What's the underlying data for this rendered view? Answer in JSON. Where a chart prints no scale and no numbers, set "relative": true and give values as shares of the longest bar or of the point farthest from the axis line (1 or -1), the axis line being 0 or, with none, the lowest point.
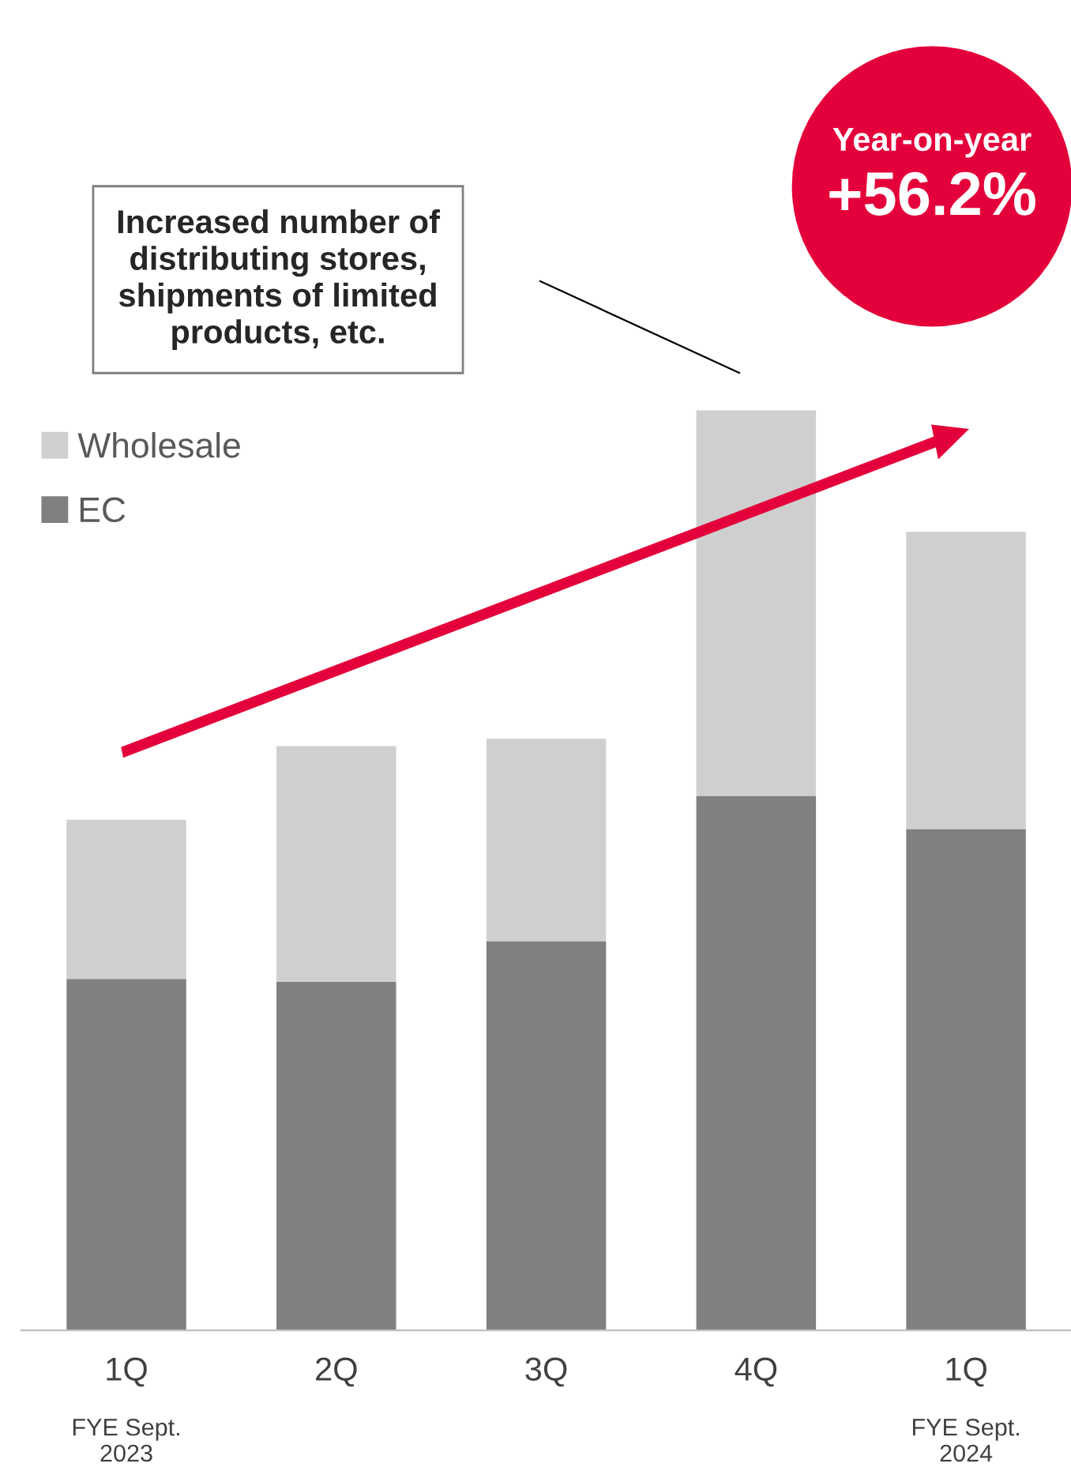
{
  "chart_data": {
    "type": "bar",
    "stacked": true,
    "relative": true,
    "legend": "top left",
    "grid": false,
    "categories": [
      "1Q\nFYE Sept.\n2023",
      "2Q",
      "3Q",
      "4Q",
      "1Q\nFYE Sept.\n2024"
    ],
    "series": [
      {
        "name": "EC",
        "color": "#808080",
        "values": [
          0.382,
          0.379,
          0.423,
          0.581,
          0.545
        ]
      },
      {
        "name": "Wholesale",
        "color": "#d0cfd0",
        "values": [
          0.173,
          0.256,
          0.22,
          0.419,
          0.323
        ]
      }
    ],
    "annotations": [
      "Increased number of\ndistributing stores,\nshipments of limited\nproducts, etc.",
      "Year-on-year",
      "+56.2%"
    ]
  }
}
